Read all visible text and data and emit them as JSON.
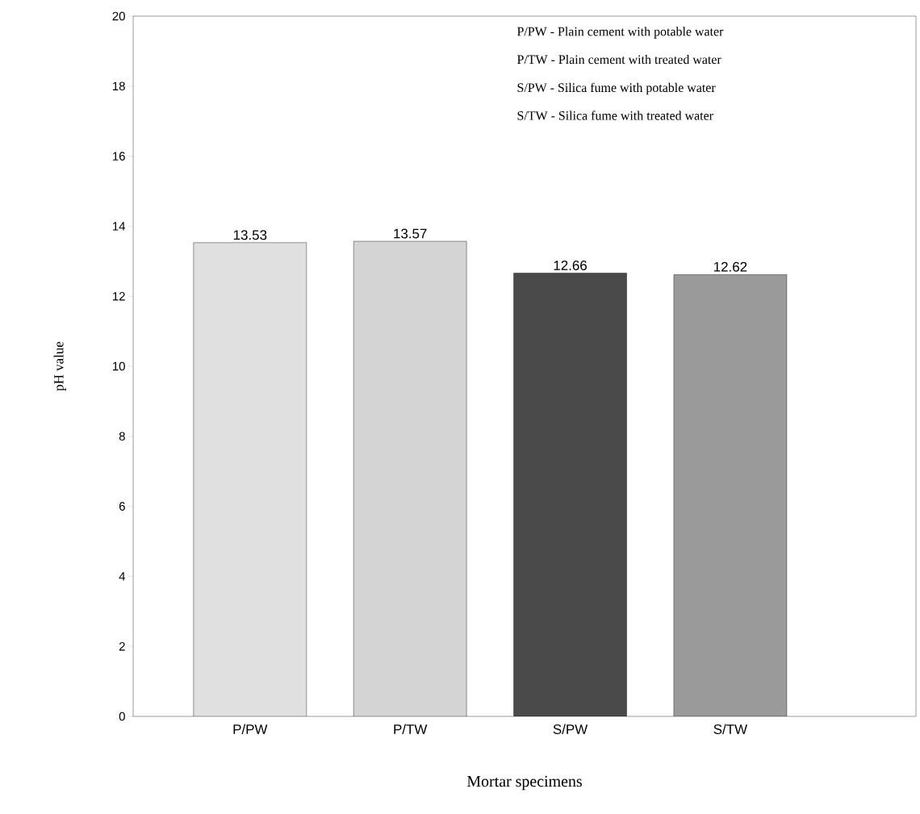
{
  "chart_data": {
    "type": "bar",
    "xlabel": "Mortar specimens",
    "ylabel": "pH value",
    "categories": [
      "P/PW",
      "P/TW",
      "S/PW",
      "S/TW"
    ],
    "values": [
      13.53,
      13.57,
      12.66,
      12.62
    ],
    "colors": [
      "#e0e0e0",
      "#d4d4d4",
      "#4a4a4a",
      "#9a9a9a"
    ],
    "ylim": [
      0,
      20
    ],
    "yticks": [
      0,
      2,
      4,
      6,
      8,
      10,
      12,
      14,
      16,
      18,
      20
    ],
    "data_labels": true,
    "annotations": [
      "P/PW - Plain cement with potable water",
      "P/TW - Plain cement with treated water",
      "S/PW - Silica fume with potable water",
      "S/TW - Silica fume with treated water"
    ]
  }
}
